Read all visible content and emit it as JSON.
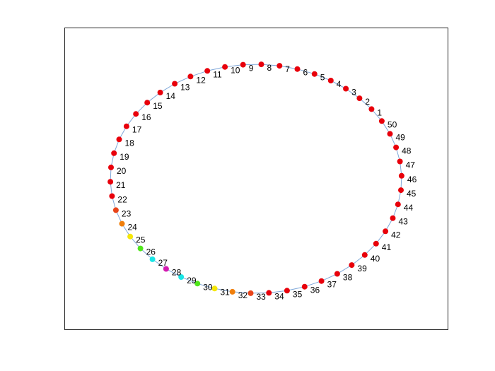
{
  "graph": {
    "layout": "circle",
    "edge_color": "#7fa7d9",
    "box_color": "#262626",
    "nodes": [
      {
        "label": "1",
        "color": "#e8000b"
      },
      {
        "label": "2",
        "color": "#e8000b"
      },
      {
        "label": "3",
        "color": "#e8000b"
      },
      {
        "label": "4",
        "color": "#e8000b"
      },
      {
        "label": "5",
        "color": "#e8000b"
      },
      {
        "label": "6",
        "color": "#e8000b"
      },
      {
        "label": "7",
        "color": "#e8000b"
      },
      {
        "label": "8",
        "color": "#e8000b"
      },
      {
        "label": "9",
        "color": "#e8000b"
      },
      {
        "label": "10",
        "color": "#e8000b"
      },
      {
        "label": "11",
        "color": "#e8000b"
      },
      {
        "label": "12",
        "color": "#e8000b"
      },
      {
        "label": "13",
        "color": "#e8000b"
      },
      {
        "label": "14",
        "color": "#e8000b"
      },
      {
        "label": "15",
        "color": "#e8000b"
      },
      {
        "label": "16",
        "color": "#e8000b"
      },
      {
        "label": "17",
        "color": "#e8000b"
      },
      {
        "label": "18",
        "color": "#e8000b"
      },
      {
        "label": "19",
        "color": "#e8000b"
      },
      {
        "label": "20",
        "color": "#e8000b"
      },
      {
        "label": "21",
        "color": "#e8000b"
      },
      {
        "label": "22",
        "color": "#e8000b"
      },
      {
        "label": "23",
        "color": "#e8441a"
      },
      {
        "label": "24",
        "color": "#f07f0c"
      },
      {
        "label": "25",
        "color": "#f5e60a"
      },
      {
        "label": "26",
        "color": "#4fe61a"
      },
      {
        "label": "27",
        "color": "#1ae6e6"
      },
      {
        "label": "28",
        "color": "#d41ab0"
      },
      {
        "label": "29",
        "color": "#1ae6e6"
      },
      {
        "label": "30",
        "color": "#4fe61a"
      },
      {
        "label": "31",
        "color": "#f5e60a"
      },
      {
        "label": "32",
        "color": "#f07f0c"
      },
      {
        "label": "33",
        "color": "#e8441a"
      },
      {
        "label": "34",
        "color": "#e8000b"
      },
      {
        "label": "35",
        "color": "#e8000b"
      },
      {
        "label": "36",
        "color": "#e8000b"
      },
      {
        "label": "37",
        "color": "#e8000b"
      },
      {
        "label": "38",
        "color": "#e8000b"
      },
      {
        "label": "39",
        "color": "#e8000b"
      },
      {
        "label": "40",
        "color": "#e8000b"
      },
      {
        "label": "41",
        "color": "#e8000b"
      },
      {
        "label": "42",
        "color": "#e8000b"
      },
      {
        "label": "43",
        "color": "#e8000b"
      },
      {
        "label": "44",
        "color": "#e8000b"
      },
      {
        "label": "45",
        "color": "#e8000b"
      },
      {
        "label": "46",
        "color": "#e8000b"
      },
      {
        "label": "47",
        "color": "#e8000b"
      },
      {
        "label": "48",
        "color": "#e8000b"
      },
      {
        "label": "49",
        "color": "#e8000b"
      },
      {
        "label": "50",
        "color": "#e8000b"
      }
    ]
  }
}
